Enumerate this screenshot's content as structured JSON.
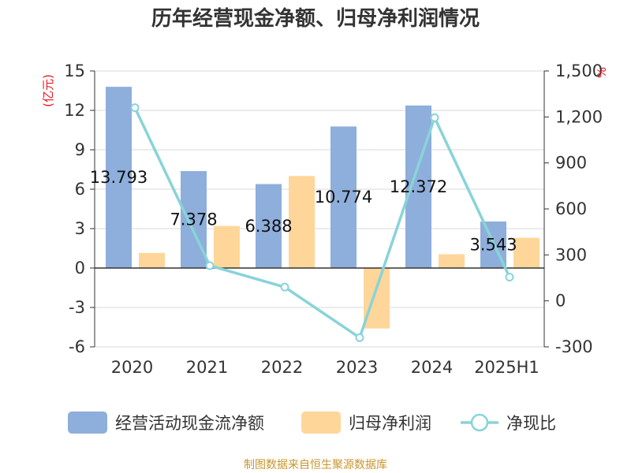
{
  "chart_data": {
    "type": "bar",
    "title": "历年经营现金净额、归母净利润情况",
    "categories": [
      "2020",
      "2021",
      "2022",
      "2023",
      "2024",
      "2025H1"
    ],
    "y_left": {
      "unit": "(亿元)",
      "ylim": [
        -6,
        15
      ],
      "ticks": [
        "15",
        "12",
        "9",
        "6",
        "3",
        "0",
        "-3",
        "-6"
      ]
    },
    "y_right": {
      "unit": "%",
      "ylim": [
        -300,
        1500
      ],
      "ticks": [
        "1,500",
        "1,200",
        "900",
        "600",
        "300",
        "0",
        "-300"
      ]
    },
    "series": [
      {
        "name": "经营活动现金流净额",
        "type": "bar",
        "axis": "left",
        "color": "#8eaedb",
        "values": [
          13.793,
          7.378,
          6.388,
          10.774,
          12.372,
          3.543
        ],
        "labels": [
          "13.793",
          "7.378",
          "6.388",
          "10.774",
          "12.372",
          "3.543"
        ]
      },
      {
        "name": "归母净利润",
        "type": "bar",
        "axis": "left",
        "color": "#ffd699",
        "values": [
          1.15,
          3.2,
          7.0,
          -4.6,
          1.05,
          2.3
        ]
      },
      {
        "name": "净现比",
        "type": "line",
        "axis": "right",
        "color": "#88d4d8",
        "values": [
          1260,
          230,
          90,
          -240,
          1195,
          155
        ]
      }
    ],
    "grid": true,
    "legend_position": "bottom"
  },
  "source": "制图数据来自恒生聚源数据库"
}
